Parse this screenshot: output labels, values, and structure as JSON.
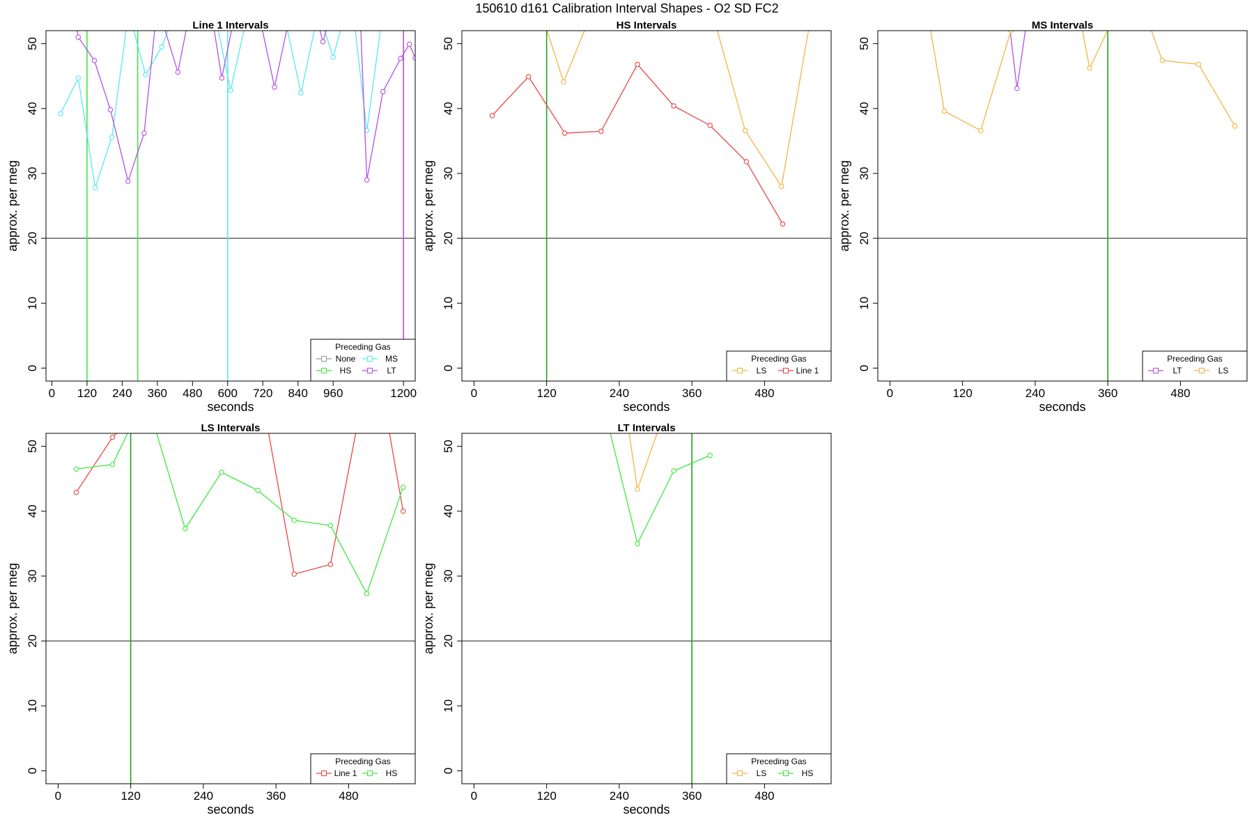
{
  "figure": {
    "title": "150610   d161   Calibration Interval Shapes - O2 SD FC2"
  },
  "colors": {
    "None": "#9a9a9a",
    "HS": "#3ee83e",
    "MS": "#55e9ef",
    "LT": "#b34fe6",
    "LS": "#f5b342",
    "Line 1": "#e84545",
    "vline_green": "#1fa11f",
    "hline": "#333333"
  },
  "chart_data": [
    {
      "type": "line",
      "title": "Line 1 Intervals",
      "xlabel": "seconds",
      "ylabel": "approx. per meg",
      "xlim": [
        -20,
        1240
      ],
      "ylim": [
        -2,
        52
      ],
      "xticks": [
        0,
        120,
        240,
        360,
        480,
        600,
        720,
        840,
        960,
        1200
      ],
      "yticks": [
        0,
        10,
        20,
        30,
        40,
        50
      ],
      "hline": 20,
      "vlines": [
        {
          "x": 120,
          "color": "HS"
        },
        {
          "x": 293,
          "color": "HS"
        },
        {
          "x": 600,
          "color": "MS"
        },
        {
          "x": 1200,
          "color": "LT"
        }
      ],
      "legend": {
        "title": "Preceding Gas",
        "position": "bottom-right",
        "columns": 2,
        "items": [
          "None",
          "HS",
          "MS",
          "LT"
        ]
      },
      "series": [
        {
          "name": "MS",
          "color": "MS",
          "points": [
            [
              30,
              39.2
            ],
            [
              90,
              44.7
            ],
            [
              148,
              27.8
            ],
            [
              205,
              35.6
            ],
            [
              262,
              55
            ],
            [
              320,
              45.2
            ],
            [
              375,
              49.5
            ],
            [
              430,
              56
            ],
            [
              490,
              58
            ],
            [
              550,
              56
            ],
            [
              610,
              42.8
            ],
            [
              670,
              55
            ],
            [
              730,
              58
            ],
            [
              790,
              55
            ],
            [
              850,
              42.4
            ],
            [
              910,
              55
            ],
            [
              960,
              47.9
            ],
            [
              1020,
              58
            ],
            [
              1075,
              36.6
            ],
            [
              1130,
              55
            ],
            [
              1190,
              58
            ]
          ]
        },
        {
          "name": "LT",
          "color": "LT",
          "points": [
            [
              80,
              54
            ],
            [
              90,
              51
            ],
            [
              145,
              47.4
            ],
            [
              200,
              39.8
            ],
            [
              260,
              28.8
            ],
            [
              315,
              36.2
            ],
            [
              360,
              56
            ],
            [
              430,
              45.6
            ],
            [
              480,
              57
            ],
            [
              540,
              56
            ],
            [
              580,
              44.7
            ],
            [
              640,
              58
            ],
            [
              700,
              56
            ],
            [
              760,
              43.3
            ],
            [
              820,
              56
            ],
            [
              880,
              58
            ],
            [
              925,
              50.3
            ],
            [
              940,
              52.5
            ],
            [
              990,
              56
            ],
            [
              1050,
              57
            ],
            [
              1075,
              29.0
            ],
            [
              1130,
              42.6
            ],
            [
              1190,
              47.7
            ],
            [
              1220,
              49.9
            ],
            [
              1240,
              47.8
            ]
          ]
        }
      ]
    },
    {
      "type": "line",
      "title": "HS Intervals",
      "xlabel": "seconds",
      "ylabel": "approx. per meg",
      "xlim": [
        -20,
        590
      ],
      "ylim": [
        -2,
        52
      ],
      "xticks": [
        0,
        120,
        240,
        360,
        480
      ],
      "yticks": [
        0,
        10,
        20,
        30,
        40,
        50
      ],
      "hline": 20,
      "vlines": [
        {
          "x": 120,
          "color": "vline_green"
        }
      ],
      "legend": {
        "title": "Preceding Gas",
        "position": "bottom-right",
        "columns": 2,
        "items": [
          "LS",
          "Line 1"
        ]
      },
      "series": [
        {
          "name": "LS",
          "color": "LS",
          "points": [
            [
              100,
              58
            ],
            [
              148,
              44.1
            ],
            [
              200,
              56
            ],
            [
              260,
              60
            ],
            [
              330,
              60
            ],
            [
              390,
              56
            ],
            [
              448,
              36.6
            ],
            [
              508,
              28.0
            ],
            [
              560,
              56
            ]
          ]
        },
        {
          "name": "Line 1",
          "color": "Line 1",
          "points": [
            [
              30,
              38.9
            ],
            [
              90,
              44.9
            ],
            [
              150,
              36.2
            ],
            [
              210,
              36.5
            ],
            [
              270,
              46.8
            ],
            [
              330,
              40.4
            ],
            [
              390,
              37.4
            ],
            [
              450,
              31.8
            ],
            [
              510,
              22.2
            ]
          ]
        }
      ]
    },
    {
      "type": "line",
      "title": "MS Intervals",
      "xlabel": "seconds",
      "ylabel": "approx. per meg",
      "xlim": [
        -20,
        590
      ],
      "ylim": [
        -2,
        52
      ],
      "xticks": [
        0,
        120,
        240,
        360,
        480
      ],
      "yticks": [
        0,
        10,
        20,
        30,
        40,
        50
      ],
      "hline": 20,
      "vlines": [
        {
          "x": 360,
          "color": "vline_green"
        }
      ],
      "legend": {
        "title": "Preceding Gas",
        "position": "bottom-right",
        "columns": 2,
        "items": [
          "LT",
          "LS"
        ]
      },
      "series": [
        {
          "name": "LT",
          "color": "LT",
          "points": [
            [
              196,
              54
            ],
            [
              210,
              43.1
            ],
            [
              230,
              56
            ]
          ]
        },
        {
          "name": "LS",
          "color": "LS",
          "points": [
            [
              60,
              56
            ],
            [
              90,
              39.6
            ],
            [
              150,
              36.6
            ],
            [
              200,
              52
            ],
            [
              250,
              58
            ],
            [
              310,
              56
            ],
            [
              330,
              46.2
            ],
            [
              380,
              56
            ],
            [
              420,
              55
            ],
            [
              450,
              47.4
            ],
            [
              510,
              46.8
            ],
            [
              570,
              37.3
            ]
          ]
        }
      ]
    },
    {
      "type": "line",
      "title": "LS Intervals",
      "xlabel": "seconds",
      "ylabel": "approx. per meg",
      "xlim": [
        -20,
        590
      ],
      "ylim": [
        -2,
        52
      ],
      "xticks": [
        0,
        120,
        240,
        360,
        480
      ],
      "yticks": [
        0,
        10,
        20,
        30,
        40,
        50
      ],
      "hline": 20,
      "vlines": [
        {
          "x": 120,
          "color": "vline_green"
        }
      ],
      "legend": {
        "title": "Preceding Gas",
        "position": "bottom-right",
        "columns": 2,
        "items": [
          "Line 1",
          "HS"
        ]
      },
      "series": [
        {
          "name": "Line 1",
          "color": "Line 1",
          "points": [
            [
              30,
              42.9
            ],
            [
              90,
              51.4
            ],
            [
              150,
              57
            ],
            [
              220,
              58
            ],
            [
              300,
              58
            ],
            [
              340,
              56
            ],
            [
              390,
              30.3
            ],
            [
              450,
              31.8
            ],
            [
              500,
              56
            ],
            [
              540,
              56
            ],
            [
              570,
              40.0
            ]
          ]
        },
        {
          "name": "HS",
          "color": "HS",
          "points": [
            [
              30,
              46.5
            ],
            [
              90,
              47.2
            ],
            [
              120,
              53
            ],
            [
              150,
              56
            ],
            [
              210,
              37.3
            ],
            [
              270,
              46.0
            ],
            [
              330,
              43.2
            ],
            [
              390,
              38.6
            ],
            [
              450,
              37.8
            ],
            [
              510,
              27.3
            ],
            [
              570,
              43.7
            ]
          ]
        }
      ]
    },
    {
      "type": "line",
      "title": "LT Intervals",
      "xlabel": "seconds",
      "ylabel": "approx. per meg",
      "xlim": [
        -20,
        590
      ],
      "ylim": [
        -2,
        52
      ],
      "xticks": [
        0,
        120,
        240,
        360,
        480
      ],
      "yticks": [
        0,
        10,
        20,
        30,
        40,
        50
      ],
      "hline": 20,
      "vlines": [
        {
          "x": 360,
          "color": "vline_green"
        }
      ],
      "legend": {
        "title": "Preceding Gas",
        "position": "bottom-right",
        "columns": 2,
        "items": [
          "LS",
          "HS"
        ]
      },
      "series": [
        {
          "name": "LS",
          "color": "LS",
          "points": [
            [
              250,
              56
            ],
            [
              270,
              43.4
            ],
            [
              310,
              54
            ]
          ]
        },
        {
          "name": "HS",
          "color": "HS",
          "points": [
            [
              220,
              54
            ],
            [
              270,
              35.0
            ],
            [
              330,
              46.2
            ],
            [
              390,
              48.6
            ]
          ]
        }
      ]
    }
  ]
}
